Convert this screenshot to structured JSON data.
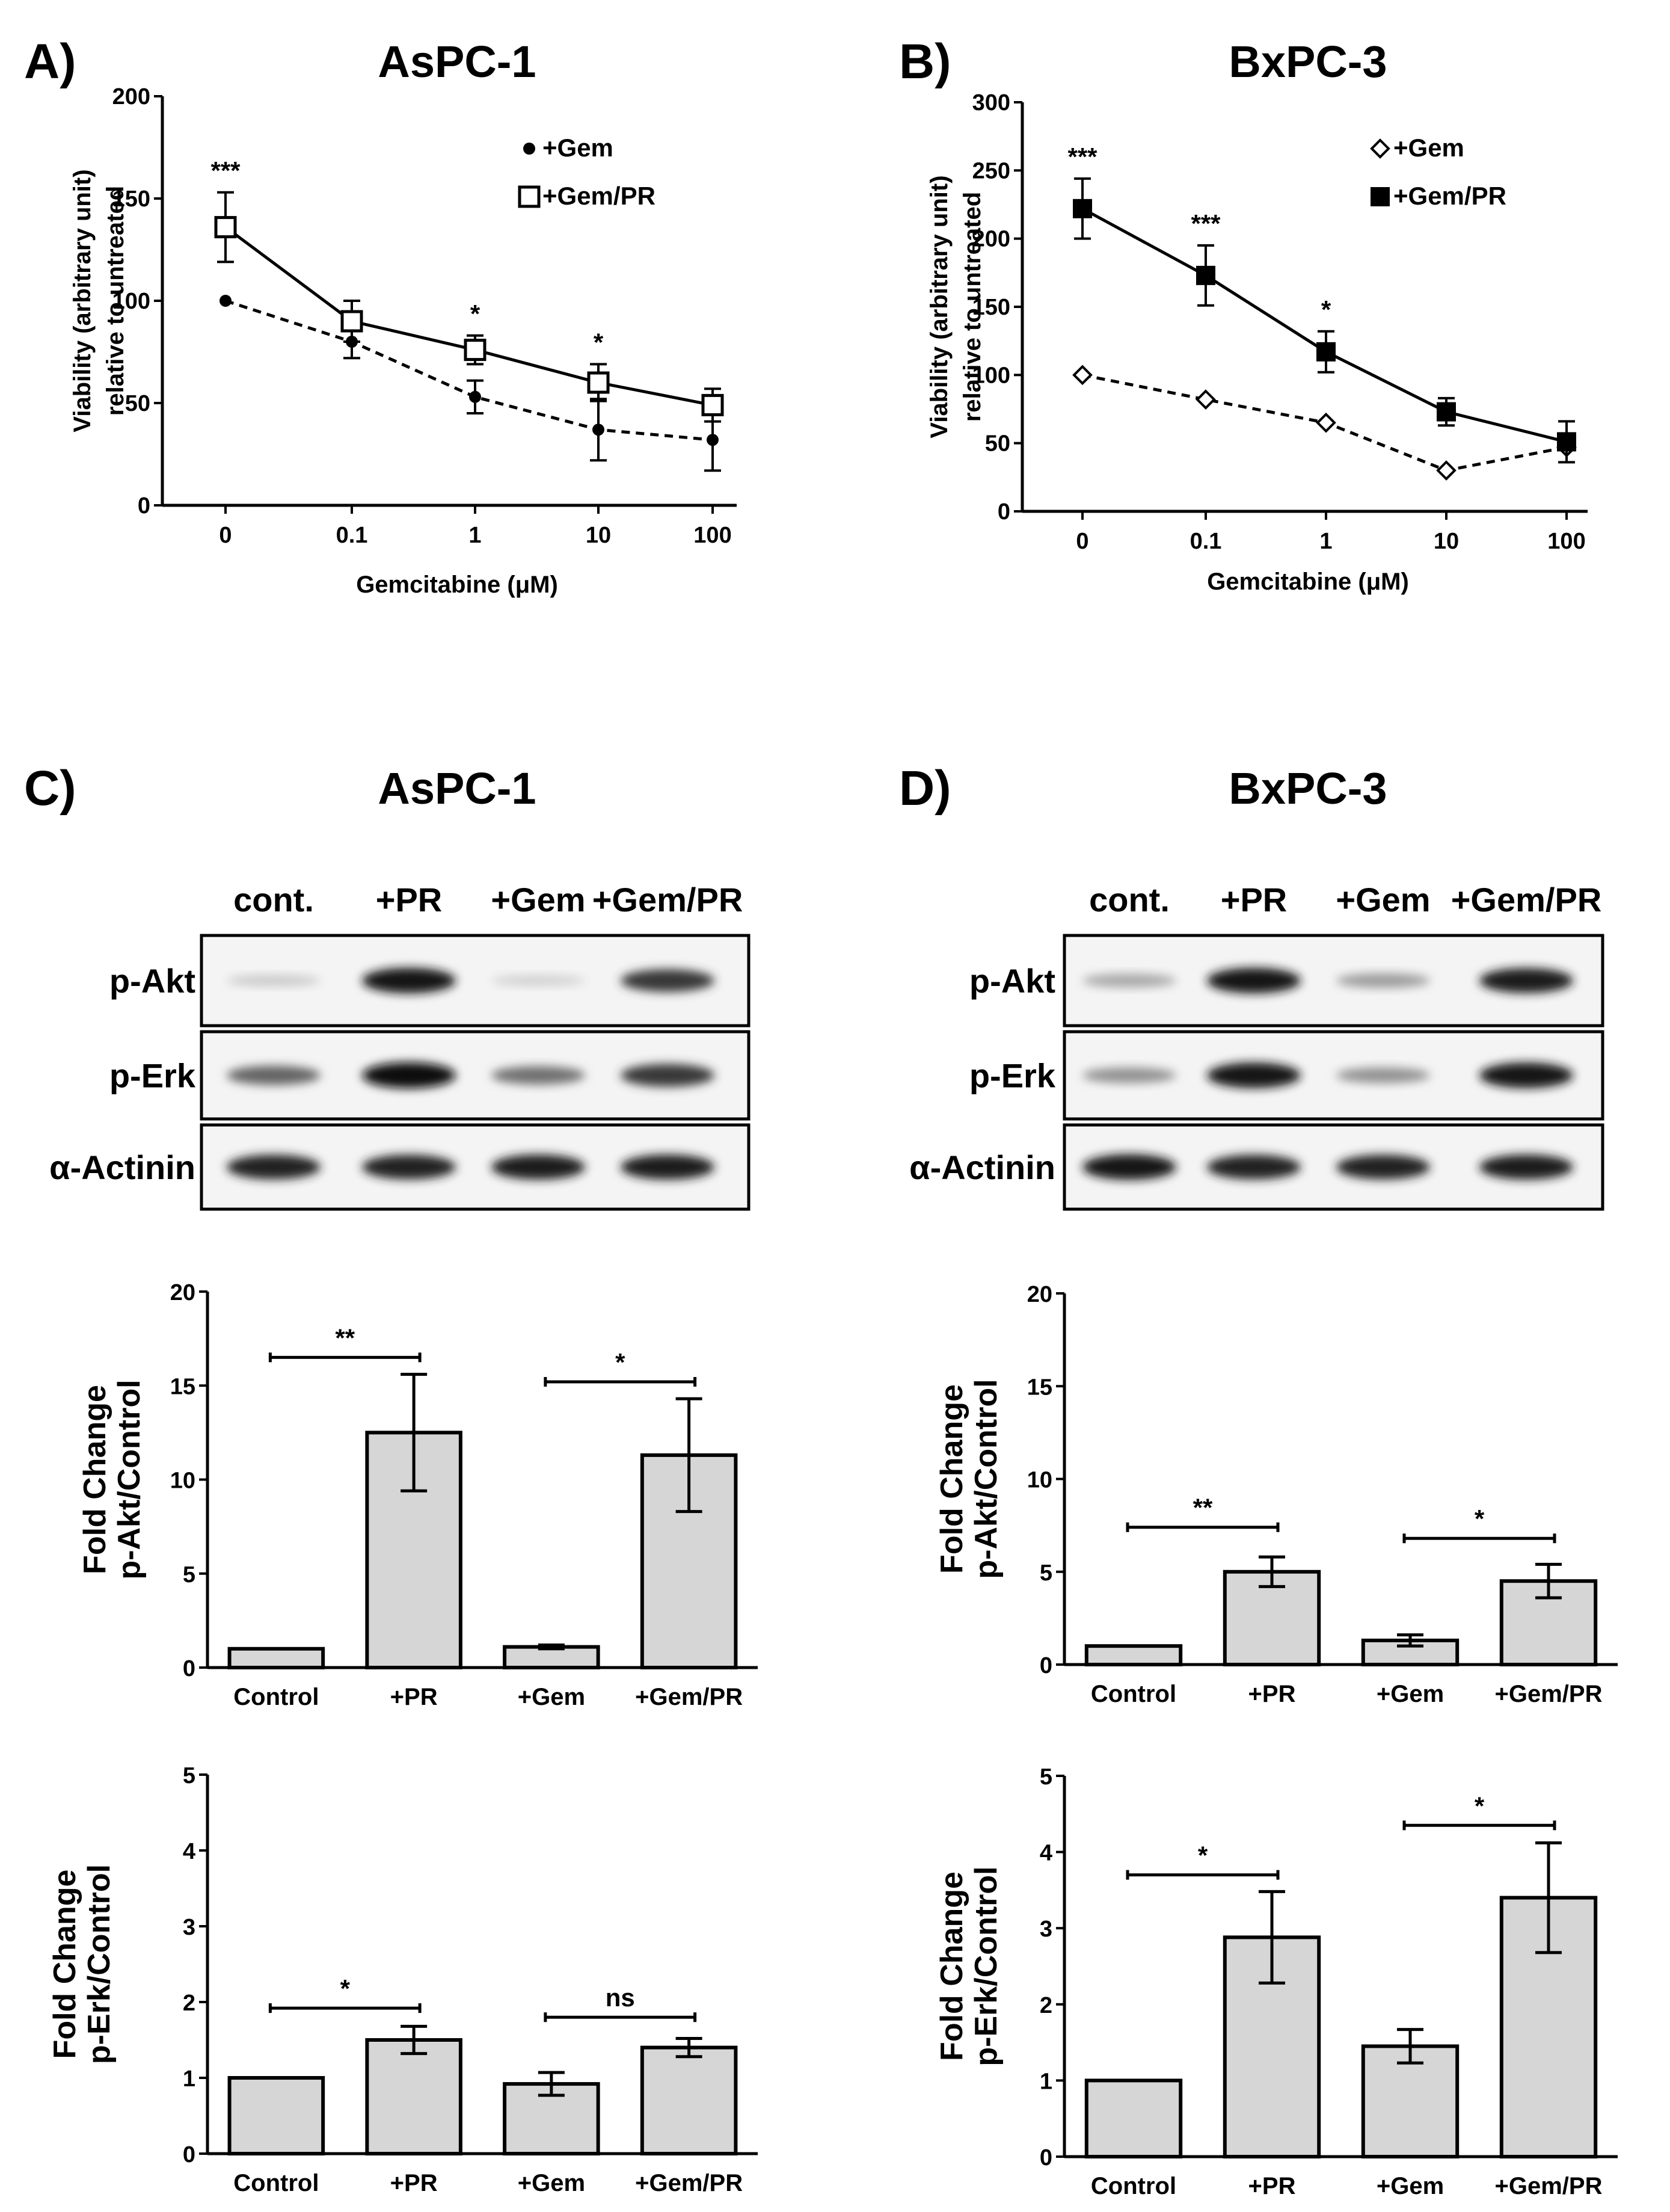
{
  "panels": {
    "A": {
      "label": "A)",
      "title": "AsPC-1"
    },
    "B": {
      "label": "B)",
      "title": "BxPC-3"
    },
    "C": {
      "label": "C)",
      "title": "AsPC-1"
    },
    "D": {
      "label": "D)",
      "title": "BxPC-3"
    }
  },
  "blots": {
    "C": {
      "lanes": [
        "cont.",
        "+PR",
        "+Gem",
        "+Gem/PR"
      ],
      "rows": [
        {
          "label": "p-Akt",
          "intensity": [
            0.15,
            0.95,
            0.12,
            0.8
          ]
        },
        {
          "label": "p-Erk",
          "intensity": [
            0.6,
            0.98,
            0.55,
            0.8
          ]
        },
        {
          "label": "α-Actinin",
          "intensity": [
            0.9,
            0.9,
            0.92,
            0.92
          ]
        }
      ]
    },
    "D": {
      "lanes": [
        "cont.",
        "+PR",
        "+Gem",
        "+Gem/PR"
      ],
      "rows": [
        {
          "label": "p-Akt",
          "intensity": [
            0.3,
            0.95,
            0.35,
            0.92
          ]
        },
        {
          "label": "p-Erk",
          "intensity": [
            0.4,
            0.95,
            0.4,
            0.95
          ]
        },
        {
          "label": "α-Actinin",
          "intensity": [
            0.95,
            0.9,
            0.9,
            0.92
          ]
        }
      ]
    }
  },
  "chart_data": [
    {
      "id": "A",
      "type": "line",
      "title": "AsPC-1",
      "xlabel": "Gemcitabine (μM)",
      "ylabel": [
        "Viability (arbitrary unit)",
        "relative to untreated"
      ],
      "categories": [
        "0",
        "0.1",
        "1",
        "10",
        "100"
      ],
      "ylim": [
        0,
        200
      ],
      "yticks": [
        0,
        50,
        100,
        150,
        200
      ],
      "series": [
        {
          "name": "+Gem",
          "marker": "filled-circle",
          "dashed": true,
          "values": [
            100,
            80,
            53,
            37,
            32
          ],
          "err": [
            0,
            8,
            8,
            15,
            15
          ]
        },
        {
          "name": "+Gem/PR",
          "marker": "open-square",
          "dashed": false,
          "values": [
            136,
            90,
            76,
            60,
            49
          ],
          "err": [
            17,
            10,
            7,
            9,
            8
          ]
        }
      ],
      "annotations": [
        "***",
        "",
        "*",
        "*",
        ""
      ]
    },
    {
      "id": "B",
      "type": "line",
      "title": "BxPC-3",
      "xlabel": "Gemcitabine (μM)",
      "ylabel": [
        "Viability (arbitrary unit)",
        "relative to untreated"
      ],
      "categories": [
        "0",
        "0.1",
        "1",
        "10",
        "100"
      ],
      "ylim": [
        0,
        300
      ],
      "yticks": [
        0,
        50,
        100,
        150,
        200,
        250,
        300
      ],
      "series": [
        {
          "name": "+Gem",
          "marker": "open-diamond",
          "dashed": true,
          "values": [
            100,
            82,
            65,
            30,
            47
          ],
          "err": [
            0,
            0,
            0,
            0,
            0
          ]
        },
        {
          "name": "+Gem/PR",
          "marker": "filled-square",
          "dashed": false,
          "values": [
            222,
            173,
            117,
            73,
            51
          ],
          "err": [
            22,
            22,
            15,
            10,
            15
          ]
        }
      ],
      "annotations": [
        "***",
        "***",
        "*",
        "",
        ""
      ]
    },
    {
      "id": "C1",
      "type": "bar",
      "ylabel": [
        "Fold Change",
        "p-Akt/Control"
      ],
      "categories": [
        "Control",
        "+PR",
        "+Gem",
        "+Gem/PR"
      ],
      "values": [
        1,
        12.5,
        1.1,
        11.3
      ],
      "err": [
        0,
        3.1,
        0.1,
        3.0
      ],
      "ylim": [
        0,
        20
      ],
      "yticks": [
        0,
        5,
        10,
        15,
        20
      ],
      "comparisons": [
        {
          "from": 0,
          "to": 1,
          "label": "**",
          "y": 16.5
        },
        {
          "from": 2,
          "to": 3,
          "label": "*",
          "y": 15.2
        }
      ]
    },
    {
      "id": "C2",
      "type": "bar",
      "ylabel": [
        "Fold Change",
        "p-Erk/Control"
      ],
      "categories": [
        "Control",
        "+PR",
        "+Gem",
        "+Gem/PR"
      ],
      "values": [
        1,
        1.5,
        0.92,
        1.4
      ],
      "err": [
        0,
        0.18,
        0.15,
        0.12
      ],
      "ylim": [
        0,
        5
      ],
      "yticks": [
        0,
        1,
        2,
        3,
        4,
        5
      ],
      "comparisons": [
        {
          "from": 0,
          "to": 1,
          "label": "*",
          "y": 1.92
        },
        {
          "from": 2,
          "to": 3,
          "label": "ns",
          "y": 1.8
        }
      ]
    },
    {
      "id": "D1",
      "type": "bar",
      "ylabel": [
        "Fold Change",
        "p-Akt/Control"
      ],
      "categories": [
        "Control",
        "+PR",
        "+Gem",
        "+Gem/PR"
      ],
      "values": [
        1,
        5,
        1.3,
        4.5
      ],
      "err": [
        0,
        0.8,
        0.3,
        0.9
      ],
      "ylim": [
        0,
        20
      ],
      "yticks": [
        0,
        5,
        10,
        15,
        20
      ],
      "comparisons": [
        {
          "from": 0,
          "to": 1,
          "label": "**",
          "y": 7.4
        },
        {
          "from": 2,
          "to": 3,
          "label": "*",
          "y": 6.8
        }
      ]
    },
    {
      "id": "D2",
      "type": "bar",
      "ylabel": [
        "Fold Change",
        "p-Erk/Control"
      ],
      "categories": [
        "Control",
        "+PR",
        "+Gem",
        "+Gem/PR"
      ],
      "values": [
        1,
        2.88,
        1.45,
        3.4
      ],
      "err": [
        0,
        0.6,
        0.22,
        0.72
      ],
      "ylim": [
        0,
        5
      ],
      "yticks": [
        0,
        1,
        2,
        3,
        4,
        5
      ],
      "comparisons": [
        {
          "from": 0,
          "to": 1,
          "label": "*",
          "y": 3.7
        },
        {
          "from": 2,
          "to": 3,
          "label": "*",
          "y": 4.35
        }
      ]
    }
  ]
}
